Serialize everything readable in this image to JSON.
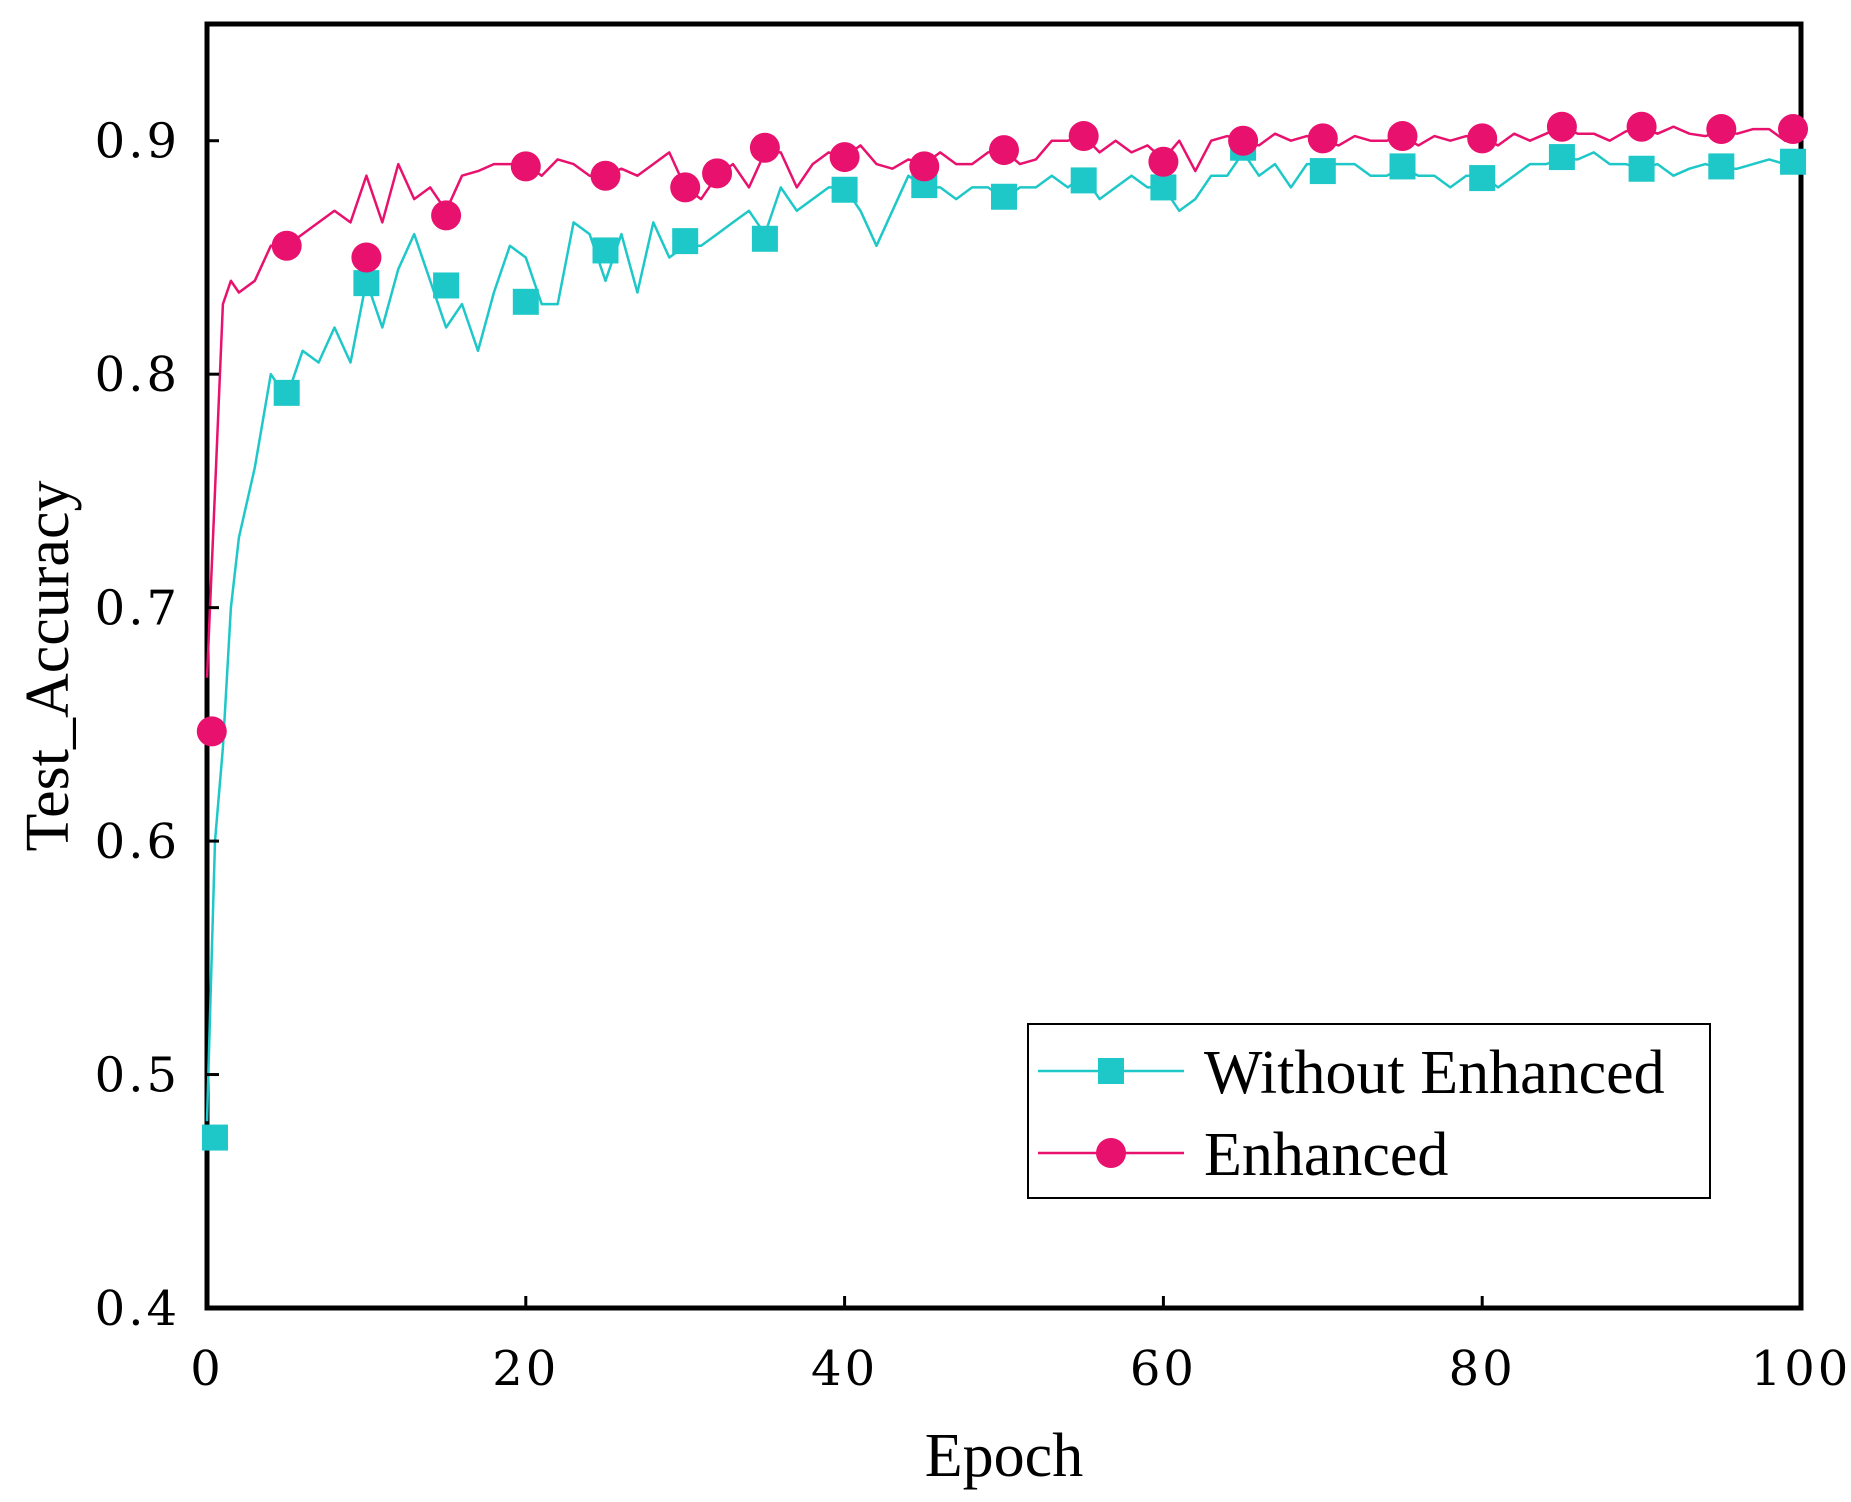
{
  "chart_data": {
    "type": "line",
    "title": "",
    "xlabel": "Epoch",
    "ylabel": "Test_Accuracy",
    "xlim": [
      0,
      100
    ],
    "ylim": [
      0.4,
      0.95
    ],
    "xticks": [
      0,
      20,
      40,
      60,
      80,
      100
    ],
    "xtick_labels": [
      "0",
      "20",
      "40",
      "60",
      "80",
      "100"
    ],
    "yticks": [
      0.4,
      0.5,
      0.6,
      0.7,
      0.8,
      0.9
    ],
    "ytick_labels": [
      "0.4",
      "0.5",
      "0.6",
      "0.7",
      "0.8",
      "0.9"
    ],
    "grid": false,
    "legend_position": "bottom-right",
    "series": [
      {
        "name": "Without Enhanced",
        "color": "#1ec8c8",
        "marker": "square",
        "line": [
          [
            0,
            0.48
          ],
          [
            0.5,
            0.6
          ],
          [
            1,
            0.64
          ],
          [
            1.5,
            0.7
          ],
          [
            2,
            0.73
          ],
          [
            3,
            0.76
          ],
          [
            4,
            0.8
          ],
          [
            5,
            0.79
          ],
          [
            6,
            0.81
          ],
          [
            7,
            0.805
          ],
          [
            8,
            0.82
          ],
          [
            9,
            0.805
          ],
          [
            10,
            0.84
          ],
          [
            11,
            0.82
          ],
          [
            12,
            0.845
          ],
          [
            13,
            0.86
          ],
          [
            14,
            0.84
          ],
          [
            15,
            0.82
          ],
          [
            16,
            0.83
          ],
          [
            17,
            0.81
          ],
          [
            18,
            0.835
          ],
          [
            19,
            0.855
          ],
          [
            20,
            0.85
          ],
          [
            21,
            0.83
          ],
          [
            22,
            0.83
          ],
          [
            23,
            0.865
          ],
          [
            24,
            0.86
          ],
          [
            25,
            0.84
          ],
          [
            26,
            0.86
          ],
          [
            27,
            0.835
          ],
          [
            28,
            0.865
          ],
          [
            29,
            0.85
          ],
          [
            30,
            0.855
          ],
          [
            31,
            0.855
          ],
          [
            32,
            0.86
          ],
          [
            33,
            0.865
          ],
          [
            34,
            0.87
          ],
          [
            35,
            0.86
          ],
          [
            36,
            0.88
          ],
          [
            37,
            0.87
          ],
          [
            38,
            0.875
          ],
          [
            39,
            0.88
          ],
          [
            40,
            0.88
          ],
          [
            41,
            0.87
          ],
          [
            42,
            0.855
          ],
          [
            43,
            0.87
          ],
          [
            44,
            0.885
          ],
          [
            45,
            0.88
          ],
          [
            46,
            0.88
          ],
          [
            47,
            0.875
          ],
          [
            48,
            0.88
          ],
          [
            49,
            0.88
          ],
          [
            50,
            0.875
          ],
          [
            51,
            0.88
          ],
          [
            52,
            0.88
          ],
          [
            53,
            0.885
          ],
          [
            54,
            0.88
          ],
          [
            55,
            0.885
          ],
          [
            56,
            0.875
          ],
          [
            57,
            0.88
          ],
          [
            58,
            0.885
          ],
          [
            59,
            0.88
          ],
          [
            60,
            0.88
          ],
          [
            61,
            0.87
          ],
          [
            62,
            0.875
          ],
          [
            63,
            0.885
          ],
          [
            64,
            0.885
          ],
          [
            65,
            0.895
          ],
          [
            66,
            0.885
          ],
          [
            67,
            0.89
          ],
          [
            68,
            0.88
          ],
          [
            69,
            0.89
          ],
          [
            70,
            0.89
          ],
          [
            71,
            0.89
          ],
          [
            72,
            0.89
          ],
          [
            73,
            0.885
          ],
          [
            74,
            0.885
          ],
          [
            75,
            0.888
          ],
          [
            76,
            0.885
          ],
          [
            77,
            0.885
          ],
          [
            78,
            0.88
          ],
          [
            79,
            0.885
          ],
          [
            80,
            0.885
          ],
          [
            81,
            0.88
          ],
          [
            82,
            0.885
          ],
          [
            83,
            0.89
          ],
          [
            84,
            0.89
          ],
          [
            85,
            0.892
          ],
          [
            86,
            0.892
          ],
          [
            87,
            0.895
          ],
          [
            88,
            0.89
          ],
          [
            89,
            0.89
          ],
          [
            90,
            0.888
          ],
          [
            91,
            0.89
          ],
          [
            92,
            0.885
          ],
          [
            93,
            0.888
          ],
          [
            94,
            0.89
          ],
          [
            95,
            0.888
          ],
          [
            96,
            0.888
          ],
          [
            97,
            0.89
          ],
          [
            98,
            0.892
          ],
          [
            99,
            0.89
          ],
          [
            100,
            0.89
          ]
        ],
        "markers": [
          [
            0.5,
            0.473
          ],
          [
            5,
            0.792
          ],
          [
            10,
            0.839
          ],
          [
            15,
            0.838
          ],
          [
            20,
            0.831
          ],
          [
            25,
            0.853
          ],
          [
            30,
            0.857
          ],
          [
            35,
            0.858
          ],
          [
            40,
            0.879
          ],
          [
            45,
            0.881
          ],
          [
            50,
            0.876
          ],
          [
            55,
            0.883
          ],
          [
            60,
            0.88
          ],
          [
            65,
            0.897
          ],
          [
            70,
            0.887
          ],
          [
            75,
            0.889
          ],
          [
            80,
            0.884
          ],
          [
            85,
            0.893
          ],
          [
            90,
            0.888
          ],
          [
            95,
            0.889
          ],
          [
            99.5,
            0.891
          ]
        ]
      },
      {
        "name": "Enhanced",
        "color": "#e8116e",
        "marker": "circle",
        "line": [
          [
            0,
            0.67
          ],
          [
            0.5,
            0.75
          ],
          [
            1,
            0.83
          ],
          [
            1.5,
            0.84
          ],
          [
            2,
            0.835
          ],
          [
            3,
            0.84
          ],
          [
            4,
            0.855
          ],
          [
            5,
            0.855
          ],
          [
            6,
            0.86
          ],
          [
            7,
            0.865
          ],
          [
            8,
            0.87
          ],
          [
            9,
            0.865
          ],
          [
            10,
            0.885
          ],
          [
            11,
            0.865
          ],
          [
            12,
            0.89
          ],
          [
            13,
            0.875
          ],
          [
            14,
            0.88
          ],
          [
            15,
            0.87
          ],
          [
            16,
            0.885
          ],
          [
            17,
            0.887
          ],
          [
            18,
            0.89
          ],
          [
            19,
            0.89
          ],
          [
            20,
            0.89
          ],
          [
            21,
            0.885
          ],
          [
            22,
            0.892
          ],
          [
            23,
            0.89
          ],
          [
            24,
            0.885
          ],
          [
            25,
            0.885
          ],
          [
            26,
            0.888
          ],
          [
            27,
            0.885
          ],
          [
            28,
            0.89
          ],
          [
            29,
            0.895
          ],
          [
            30,
            0.88
          ],
          [
            31,
            0.875
          ],
          [
            32,
            0.885
          ],
          [
            33,
            0.89
          ],
          [
            34,
            0.88
          ],
          [
            35,
            0.895
          ],
          [
            36,
            0.895
          ],
          [
            37,
            0.88
          ],
          [
            38,
            0.89
          ],
          [
            39,
            0.895
          ],
          [
            40,
            0.893
          ],
          [
            41,
            0.898
          ],
          [
            42,
            0.89
          ],
          [
            43,
            0.888
          ],
          [
            44,
            0.892
          ],
          [
            45,
            0.89
          ],
          [
            46,
            0.895
          ],
          [
            47,
            0.89
          ],
          [
            48,
            0.89
          ],
          [
            49,
            0.895
          ],
          [
            50,
            0.896
          ],
          [
            51,
            0.89
          ],
          [
            52,
            0.892
          ],
          [
            53,
            0.9
          ],
          [
            54,
            0.9
          ],
          [
            55,
            0.902
          ],
          [
            56,
            0.895
          ],
          [
            57,
            0.9
          ],
          [
            58,
            0.895
          ],
          [
            59,
            0.898
          ],
          [
            60,
            0.892
          ],
          [
            61,
            0.9
          ],
          [
            62,
            0.887
          ],
          [
            63,
            0.9
          ],
          [
            64,
            0.902
          ],
          [
            65,
            0.9
          ],
          [
            66,
            0.898
          ],
          [
            67,
            0.903
          ],
          [
            68,
            0.9
          ],
          [
            69,
            0.902
          ],
          [
            70,
            0.9
          ],
          [
            71,
            0.898
          ],
          [
            72,
            0.902
          ],
          [
            73,
            0.9
          ],
          [
            74,
            0.9
          ],
          [
            75,
            0.902
          ],
          [
            76,
            0.898
          ],
          [
            77,
            0.902
          ],
          [
            78,
            0.9
          ],
          [
            79,
            0.902
          ],
          [
            80,
            0.901
          ],
          [
            81,
            0.898
          ],
          [
            82,
            0.903
          ],
          [
            83,
            0.9
          ],
          [
            84,
            0.903
          ],
          [
            85,
            0.906
          ],
          [
            86,
            0.903
          ],
          [
            87,
            0.903
          ],
          [
            88,
            0.9
          ],
          [
            89,
            0.904
          ],
          [
            90,
            0.906
          ],
          [
            91,
            0.903
          ],
          [
            92,
            0.906
          ],
          [
            93,
            0.903
          ],
          [
            94,
            0.902
          ],
          [
            95,
            0.904
          ],
          [
            96,
            0.903
          ],
          [
            97,
            0.905
          ],
          [
            98,
            0.905
          ],
          [
            99,
            0.9
          ],
          [
            100,
            0.905
          ]
        ],
        "markers": [
          [
            0.3,
            0.647
          ],
          [
            5,
            0.855
          ],
          [
            10,
            0.85
          ],
          [
            15,
            0.868
          ],
          [
            20,
            0.889
          ],
          [
            25,
            0.885
          ],
          [
            30,
            0.88
          ],
          [
            32,
            0.886
          ],
          [
            35,
            0.897
          ],
          [
            40,
            0.893
          ],
          [
            45,
            0.889
          ],
          [
            50,
            0.896
          ],
          [
            55,
            0.902
          ],
          [
            60,
            0.891
          ],
          [
            65,
            0.9
          ],
          [
            70,
            0.901
          ],
          [
            75,
            0.902
          ],
          [
            80,
            0.901
          ],
          [
            85,
            0.906
          ],
          [
            90,
            0.906
          ],
          [
            95,
            0.905
          ],
          [
            99.5,
            0.905
          ]
        ]
      }
    ]
  }
}
